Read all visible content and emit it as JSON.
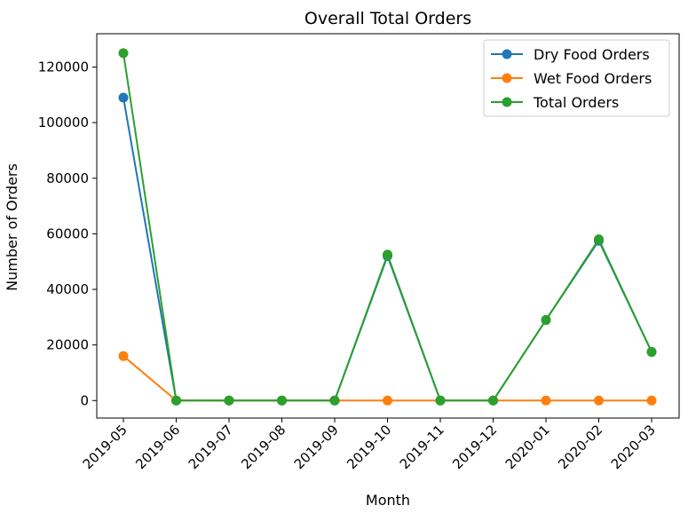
{
  "chart_data": {
    "type": "line",
    "title": "Overall Total Orders",
    "xlabel": "Month",
    "ylabel": "Number of Orders",
    "categories": [
      "2019-05",
      "2019-06",
      "2019-07",
      "2019-08",
      "2019-09",
      "2019-10",
      "2019-11",
      "2019-12",
      "2020-01",
      "2020-02",
      "2020-03"
    ],
    "ylim": [
      -6300,
      132000
    ],
    "yticks": [
      0,
      20000,
      40000,
      60000,
      80000,
      100000,
      120000
    ],
    "grid": false,
    "legend_position": "top-right",
    "series": [
      {
        "name": "Dry Food Orders",
        "color": "#1f77b4",
        "marker": "circle",
        "values": [
          109000,
          0,
          0,
          0,
          0,
          52000,
          0,
          0,
          29000,
          57500,
          17500
        ]
      },
      {
        "name": "Wet Food Orders",
        "color": "#ff7f0e",
        "marker": "circle",
        "values": [
          16000,
          0,
          0,
          0,
          0,
          0,
          0,
          0,
          0,
          0,
          0
        ]
      },
      {
        "name": "Total Orders",
        "color": "#2ca02c",
        "marker": "circle",
        "values": [
          125000,
          0,
          0,
          0,
          0,
          52500,
          0,
          0,
          29000,
          58000,
          17500
        ]
      }
    ]
  }
}
